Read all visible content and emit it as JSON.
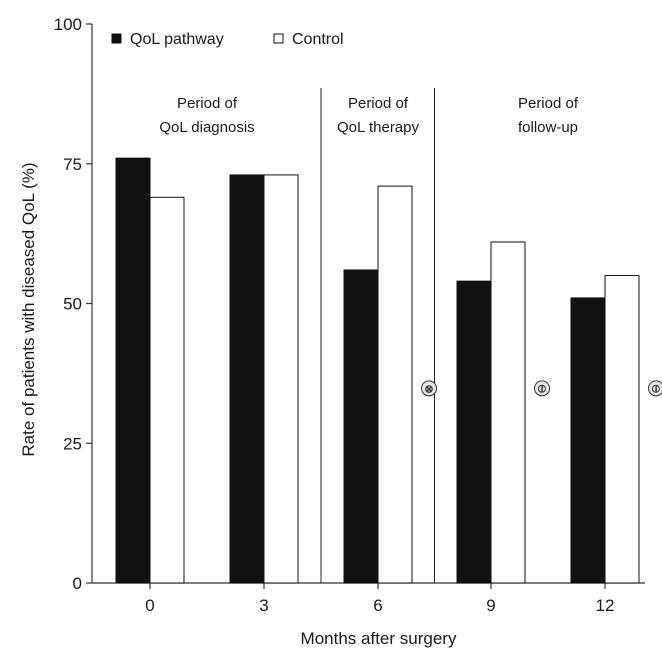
{
  "chart_data": {
    "type": "bar",
    "title": "",
    "xlabel": "Months after surgery",
    "ylabel": "Rate of patients with diseased QoL (%)",
    "ylim": [
      0,
      100
    ],
    "y_ticks": [
      "0",
      "25",
      "50",
      "75",
      "100"
    ],
    "categories": [
      "0",
      "3",
      "6",
      "9",
      "12"
    ],
    "series": [
      {
        "name": "QoL pathway",
        "values": [
          76,
          73,
          56,
          54,
          51
        ],
        "color": "#111111"
      },
      {
        "name": "Control",
        "values": [
          69,
          73,
          71,
          61,
          55
        ],
        "color": "#ffffff"
      }
    ],
    "legend": {
      "position": "top-left",
      "items": [
        "QoL pathway",
        "Control"
      ]
    },
    "periods": [
      {
        "lines": [
          "Period of",
          "QoL diagnosis"
        ]
      },
      {
        "lines": [
          "Period of",
          "QoL therapy"
        ]
      },
      {
        "lines": [
          "Period of",
          "follow-up"
        ]
      }
    ],
    "markers": [
      {
        "category": "6",
        "symbol": "⊗"
      },
      {
        "category": "9",
        "symbol": "⦶"
      },
      {
        "category": "12",
        "symbol": "⦶"
      }
    ],
    "grid": false
  }
}
